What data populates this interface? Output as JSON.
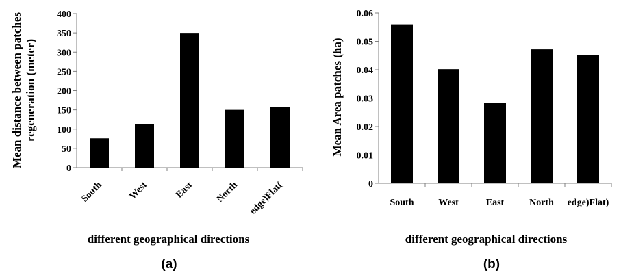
{
  "chart_data": [
    {
      "type": "bar",
      "panel_label": "(a)",
      "categories": [
        "South",
        "West",
        "East",
        "North",
        "edge)Flat("
      ],
      "values": [
        76,
        112,
        350,
        150,
        157
      ],
      "ylabel_line1": "Mean distance between patches",
      "ylabel_line2": "regeneration (meter)",
      "xlabel": "different geographical directions",
      "ylim": [
        0,
        400
      ],
      "yticks": [
        "0",
        "50",
        "100",
        "150",
        "200",
        "250",
        "300",
        "350",
        "400"
      ],
      "bar_color": "#000000",
      "grid": false
    },
    {
      "type": "bar",
      "panel_label": "(b)",
      "categories": [
        "South",
        "West",
        "East",
        "North",
        "edge)Flat)"
      ],
      "values": [
        0.056,
        0.0402,
        0.0284,
        0.0472,
        0.0452
      ],
      "ylabel": "Mean Area patches (ha)",
      "xlabel": "different geographical directions",
      "ylim": [
        0,
        0.06
      ],
      "yticks": [
        "0",
        "0.01",
        "0.02",
        "0.03",
        "0.04",
        "0.05",
        "0.06"
      ],
      "bar_color": "#000000",
      "grid": false
    }
  ]
}
